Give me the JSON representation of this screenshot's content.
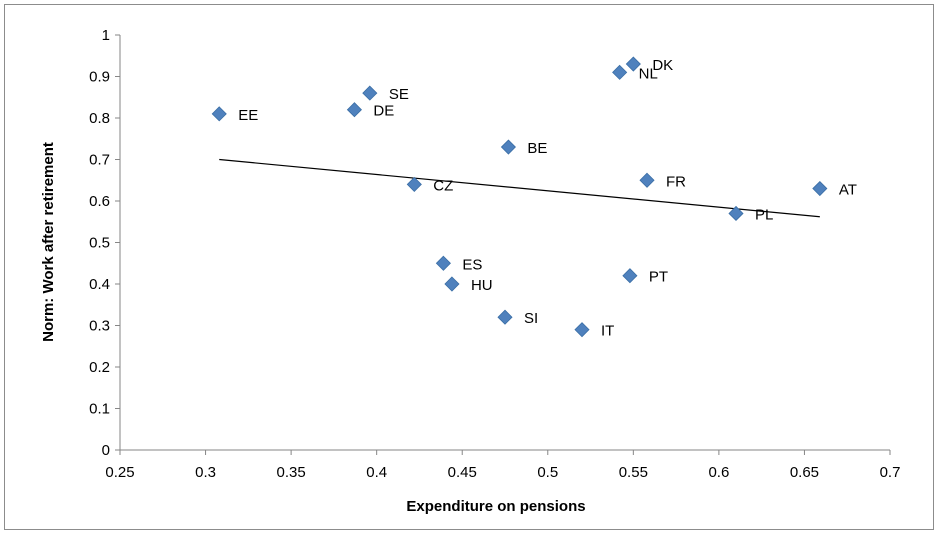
{
  "chart_data": {
    "type": "scatter",
    "xlabel": "Expenditure on pensions",
    "ylabel": "Norm: Work after retirement",
    "xlim": [
      0.25,
      0.7
    ],
    "ylim": [
      0,
      1
    ],
    "x_ticks": [
      "0.25",
      "0.3",
      "0.35",
      "0.4",
      "0.45",
      "0.5",
      "0.55",
      "0.6",
      "0.65",
      "0.7"
    ],
    "y_ticks": [
      "0",
      "0.1",
      "0.2",
      "0.3",
      "0.4",
      "0.5",
      "0.6",
      "0.7",
      "0.8",
      "0.9",
      "1"
    ],
    "grid": false,
    "legend": false,
    "marker_color": "#4f81bd",
    "trendline": {
      "type": "linear",
      "x": [
        0.308,
        0.659
      ],
      "y": [
        0.7,
        0.562
      ]
    },
    "points": [
      {
        "label": "EE",
        "x": 0.308,
        "y": 0.81
      },
      {
        "label": "SE",
        "x": 0.396,
        "y": 0.86
      },
      {
        "label": "DE",
        "x": 0.387,
        "y": 0.82
      },
      {
        "label": "CZ",
        "x": 0.422,
        "y": 0.64
      },
      {
        "label": "ES",
        "x": 0.439,
        "y": 0.45
      },
      {
        "label": "HU",
        "x": 0.444,
        "y": 0.4
      },
      {
        "label": "BE",
        "x": 0.477,
        "y": 0.73
      },
      {
        "label": "SI",
        "x": 0.475,
        "y": 0.32
      },
      {
        "label": "IT",
        "x": 0.52,
        "y": 0.29
      },
      {
        "label": "NL",
        "x": 0.542,
        "y": 0.91
      },
      {
        "label": "DK",
        "x": 0.55,
        "y": 0.93
      },
      {
        "label": "PT",
        "x": 0.548,
        "y": 0.42
      },
      {
        "label": "FR",
        "x": 0.558,
        "y": 0.65
      },
      {
        "label": "PL",
        "x": 0.61,
        "y": 0.57
      },
      {
        "label": "AT",
        "x": 0.659,
        "y": 0.63
      }
    ]
  }
}
